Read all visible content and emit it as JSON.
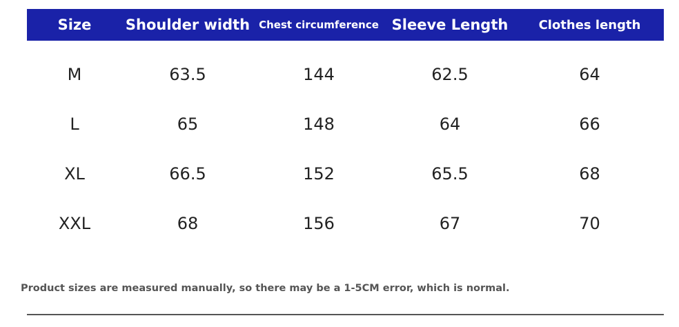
{
  "table": {
    "header": [
      "Size",
      "Shoulder width",
      "Chest circumference",
      "Sleeve Length",
      "Clothes length"
    ],
    "rows": [
      [
        "M",
        "63.5",
        "144",
        "62.5",
        "64"
      ],
      [
        "L",
        "65",
        "148",
        "64",
        "66"
      ],
      [
        "XL",
        "66.5",
        "152",
        "65.5",
        "68"
      ],
      [
        "XXL",
        "68",
        "156",
        "67",
        "70"
      ]
    ]
  },
  "note": "Product sizes are measured manually, so there may be a 1-5CM error, which is normal."
}
